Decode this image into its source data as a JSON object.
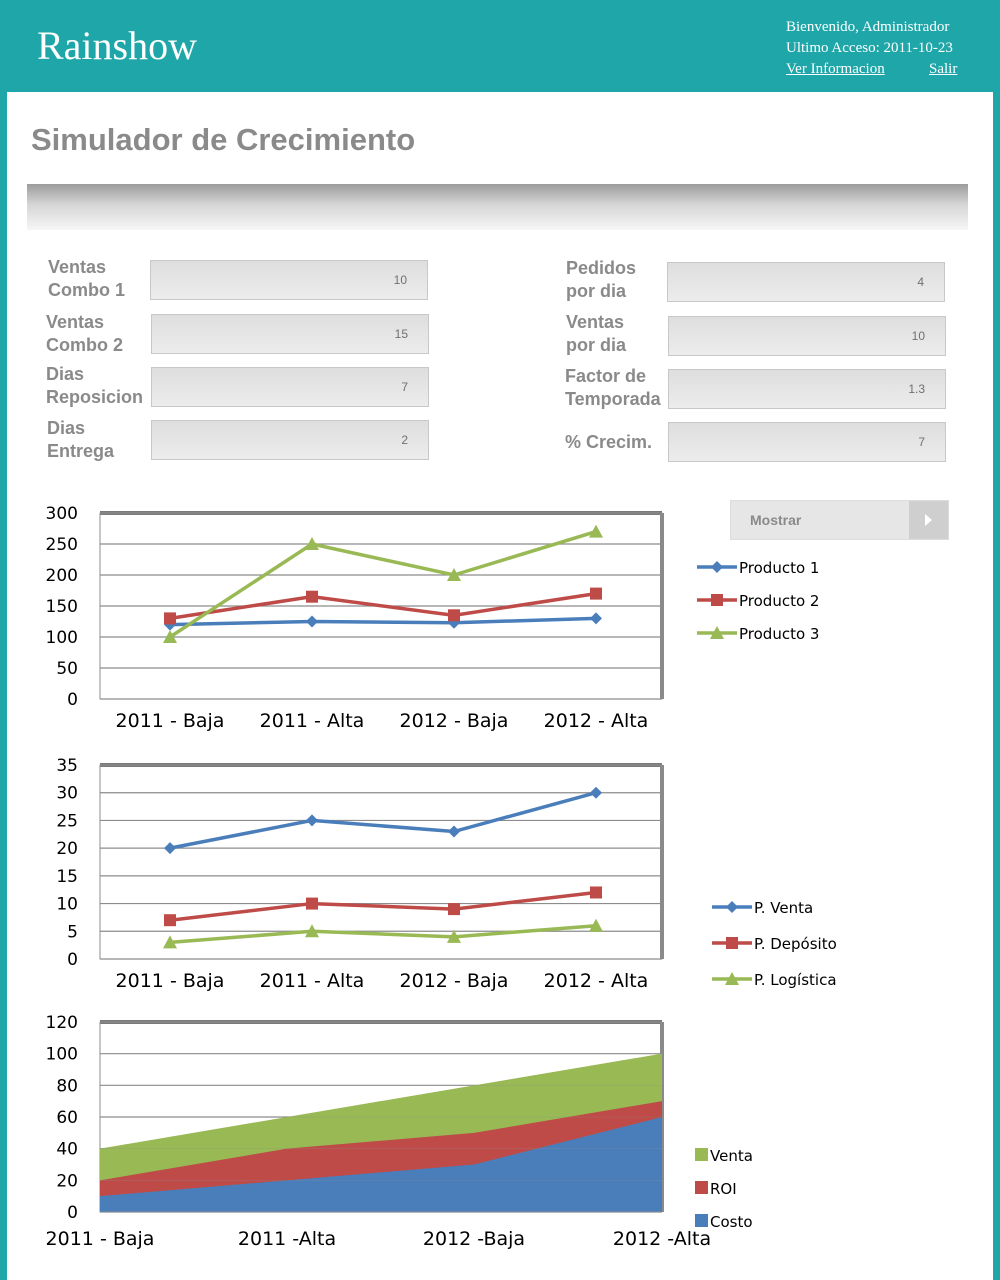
{
  "header": {
    "logo": "Rainshow",
    "welcome": "Bienvenido, Administrador",
    "last_access": "Ultimo Acceso: 2011-10-23",
    "view_info_link": "Ver Informacion",
    "logout_link": "Salir"
  },
  "page": {
    "title": "Simulador de Crecimiento"
  },
  "form": {
    "left": [
      {
        "label": "Ventas\nCombo 1",
        "value": "10"
      },
      {
        "label": "Ventas\nCombo 2",
        "value": "15"
      },
      {
        "label": "Dias\nReposicion",
        "value": "7"
      },
      {
        "label": "Dias\nEntrega",
        "value": "2"
      }
    ],
    "right": [
      {
        "label": "Pedidos\npor dia",
        "value": "4"
      },
      {
        "label": "Ventas\npor dia",
        "value": "10"
      },
      {
        "label": "Factor de\nTemporada",
        "value": "1.3"
      },
      {
        "label": "% Crecim.",
        "value": "7"
      }
    ],
    "show_button": "Mostrar"
  },
  "colors": {
    "blue": "#4a7ebb",
    "red": "#be4b48",
    "green": "#98b954",
    "header_bg": "#1fa6a8"
  },
  "chart_data": [
    {
      "type": "line",
      "categories": [
        "2011  - Baja",
        "2011  - Alta",
        "2012  - Baja",
        "2012 - Alta"
      ],
      "ylim": [
        0,
        300
      ],
      "yticks": [
        0,
        50,
        100,
        150,
        200,
        250,
        300
      ],
      "grid": true,
      "legend": "right",
      "series": [
        {
          "name": "Producto 1",
          "values": [
            120,
            125,
            123,
            130
          ],
          "color": "#4a7ebb",
          "marker": "diamond"
        },
        {
          "name": "Producto 2",
          "values": [
            130,
            165,
            135,
            170
          ],
          "color": "#be4b48",
          "marker": "square"
        },
        {
          "name": "Producto 3",
          "values": [
            100,
            250,
            200,
            270
          ],
          "color": "#98b954",
          "marker": "triangle"
        }
      ]
    },
    {
      "type": "line",
      "categories": [
        "2011  - Baja",
        "2011  - Alta",
        "2012  - Baja",
        "2012 - Alta"
      ],
      "ylim": [
        0,
        35
      ],
      "yticks": [
        0,
        5,
        10,
        15,
        20,
        25,
        30,
        35
      ],
      "grid": true,
      "legend": "right",
      "series": [
        {
          "name": "P. Venta",
          "values": [
            20,
            25,
            23,
            30
          ],
          "color": "#4a7ebb",
          "marker": "diamond"
        },
        {
          "name": "P. Depósito",
          "values": [
            7,
            10,
            9,
            12
          ],
          "color": "#be4b48",
          "marker": "square"
        },
        {
          "name": "P. Logística",
          "values": [
            3,
            5,
            4,
            6
          ],
          "color": "#98b954",
          "marker": "triangle"
        }
      ]
    },
    {
      "type": "area",
      "stacked": true,
      "categories": [
        "2011 - Baja",
        "2011 -Alta",
        "2012 -Baja",
        "2012 -Alta"
      ],
      "ylim": [
        0,
        120
      ],
      "yticks": [
        0,
        20,
        40,
        60,
        80,
        100,
        120
      ],
      "grid": true,
      "legend": "right",
      "series": [
        {
          "name": "Costo",
          "values": [
            10,
            20,
            30,
            60
          ],
          "color": "#4a7ebb"
        },
        {
          "name": "ROI",
          "values": [
            10,
            20,
            20,
            10
          ],
          "color": "#be4b48"
        },
        {
          "name": "Venta",
          "values": [
            20,
            20,
            30,
            30
          ],
          "color": "#98b954"
        }
      ],
      "legend_order": [
        "Venta",
        "ROI",
        "Costo"
      ]
    }
  ]
}
